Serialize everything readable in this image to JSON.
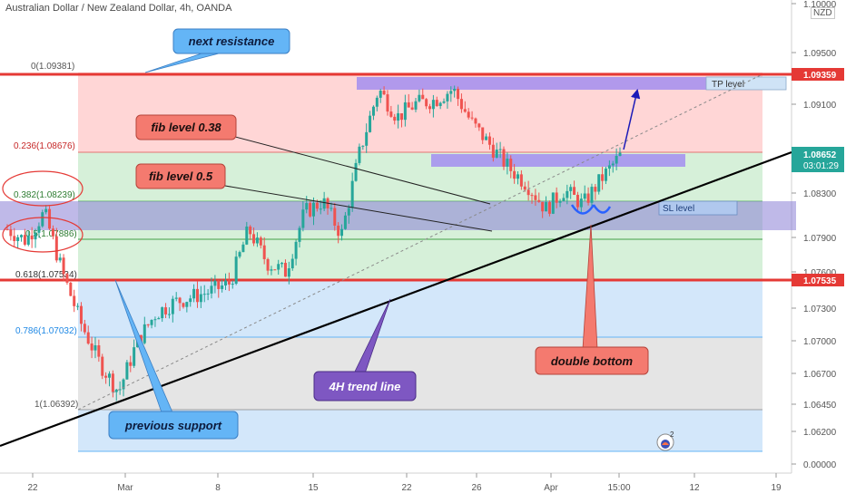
{
  "header": {
    "title": "Australian Dollar / New Zealand Dollar, 4h, OANDA"
  },
  "axis": {
    "unit_badge": "NZD",
    "price_ticks": [
      "1.10000",
      "1.09500",
      "1.09100",
      "1.08700",
      "1.08300",
      "1.07900",
      "1.07600",
      "1.07300",
      "1.07000",
      "1.06700",
      "1.06450",
      "1.06200",
      "0.00000"
    ],
    "time_ticks": [
      "22",
      "Mar",
      "8",
      "15",
      "22",
      "26",
      "Apr",
      "15:00",
      "12",
      "19"
    ]
  },
  "price_tags": {
    "resistance": "1.09359",
    "current_price": "1.08652",
    "countdown": "03:01:29",
    "support": "1.07535"
  },
  "fib_labels": [
    "0(1.09381)",
    "0.236(1.08676)",
    "0.382(1.08239)",
    "0.5(1.07886)",
    "0.618(1.07534)",
    "0.786(1.07032)",
    "1(1.06392)"
  ],
  "callouts": {
    "next_resistance": "next resistance",
    "fib_038": "fib level 0.38",
    "fib_05": "fib level 0.5",
    "previous_support": "previous support",
    "trend_line": "4H trend line",
    "double_bottom": "double bottom"
  },
  "levels": {
    "tp": "TP level",
    "sl": "SL level"
  },
  "badge_count": "2",
  "colors": {
    "up": "#26a69a",
    "down": "#ef5350",
    "red_line": "#e53935",
    "fib_red": "#ffd6d6",
    "fib_green": "#d6f0d9",
    "fib_blue": "#d3e7fa",
    "fib_grey": "#e5e5e5",
    "purple_zone": "#8b7fd6",
    "callout_blue": "#64b5f6",
    "callout_red": "#f47a6f",
    "callout_purple": "#7e57c2"
  },
  "chart_data": {
    "type": "candlestick",
    "instrument": "AUD/NZD",
    "timeframe": "4h",
    "ylim": [
      1.0605,
      1.1005
    ],
    "levels": [
      {
        "label": "next resistance",
        "value": 1.09359
      },
      {
        "label": "previous support",
        "value": 1.07535
      }
    ],
    "fibonacci": [
      {
        "ratio": 0,
        "value": 1.09381
      },
      {
        "ratio": 0.236,
        "value": 1.08676
      },
      {
        "ratio": 0.382,
        "value": 1.08239
      },
      {
        "ratio": 0.5,
        "value": 1.07886
      },
      {
        "ratio": 0.618,
        "value": 1.07534
      },
      {
        "ratio": 0.786,
        "value": 1.07032
      },
      {
        "ratio": 1,
        "value": 1.06392
      }
    ],
    "current_price": 1.08652,
    "close_path": [
      {
        "t": "Feb 22",
        "close": 1.08
      },
      {
        "t": "Feb 23",
        "close": 1.079
      },
      {
        "t": "Feb 24",
        "close": 1.0815
      },
      {
        "t": "Feb 25",
        "close": 1.076
      },
      {
        "t": "Feb 26",
        "close": 1.0715
      },
      {
        "t": "Feb 27",
        "close": 1.068
      },
      {
        "t": "Mar 1",
        "close": 1.0655
      },
      {
        "t": "Mar 2",
        "close": 1.07
      },
      {
        "t": "Mar 3",
        "close": 1.0725
      },
      {
        "t": "Mar 5",
        "close": 1.0735
      },
      {
        "t": "Mar 8",
        "close": 1.074
      },
      {
        "t": "Mar 10",
        "close": 1.0745
      },
      {
        "t": "Mar 12",
        "close": 1.0752
      },
      {
        "t": "Mar 15",
        "close": 1.08
      },
      {
        "t": "Mar 16",
        "close": 1.077
      },
      {
        "t": "Mar 18",
        "close": 1.0762
      },
      {
        "t": "Mar 19",
        "close": 1.0815
      },
      {
        "t": "Mar 20",
        "close": 1.0825
      },
      {
        "t": "Mar 21",
        "close": 1.0795
      },
      {
        "t": "Mar 22",
        "close": 1.087
      },
      {
        "t": "Mar 23",
        "close": 1.0925
      },
      {
        "t": "Mar 24",
        "close": 1.09
      },
      {
        "t": "Mar 25",
        "close": 1.0912
      },
      {
        "t": "Mar 26",
        "close": 1.0915
      },
      {
        "t": "Mar 27",
        "close": 1.0925
      },
      {
        "t": "Mar 29",
        "close": 1.0895
      },
      {
        "t": "Mar 30",
        "close": 1.0875
      },
      {
        "t": "Mar 31",
        "close": 1.0855
      },
      {
        "t": "Apr 1",
        "close": 1.084
      },
      {
        "t": "Apr 2",
        "close": 1.0818
      },
      {
        "t": "Apr 3",
        "close": 1.0835
      },
      {
        "t": "Apr 5",
        "close": 1.0822
      },
      {
        "t": "Apr 6",
        "close": 1.0845
      },
      {
        "t": "Apr 7",
        "close": 1.08652
      }
    ]
  }
}
